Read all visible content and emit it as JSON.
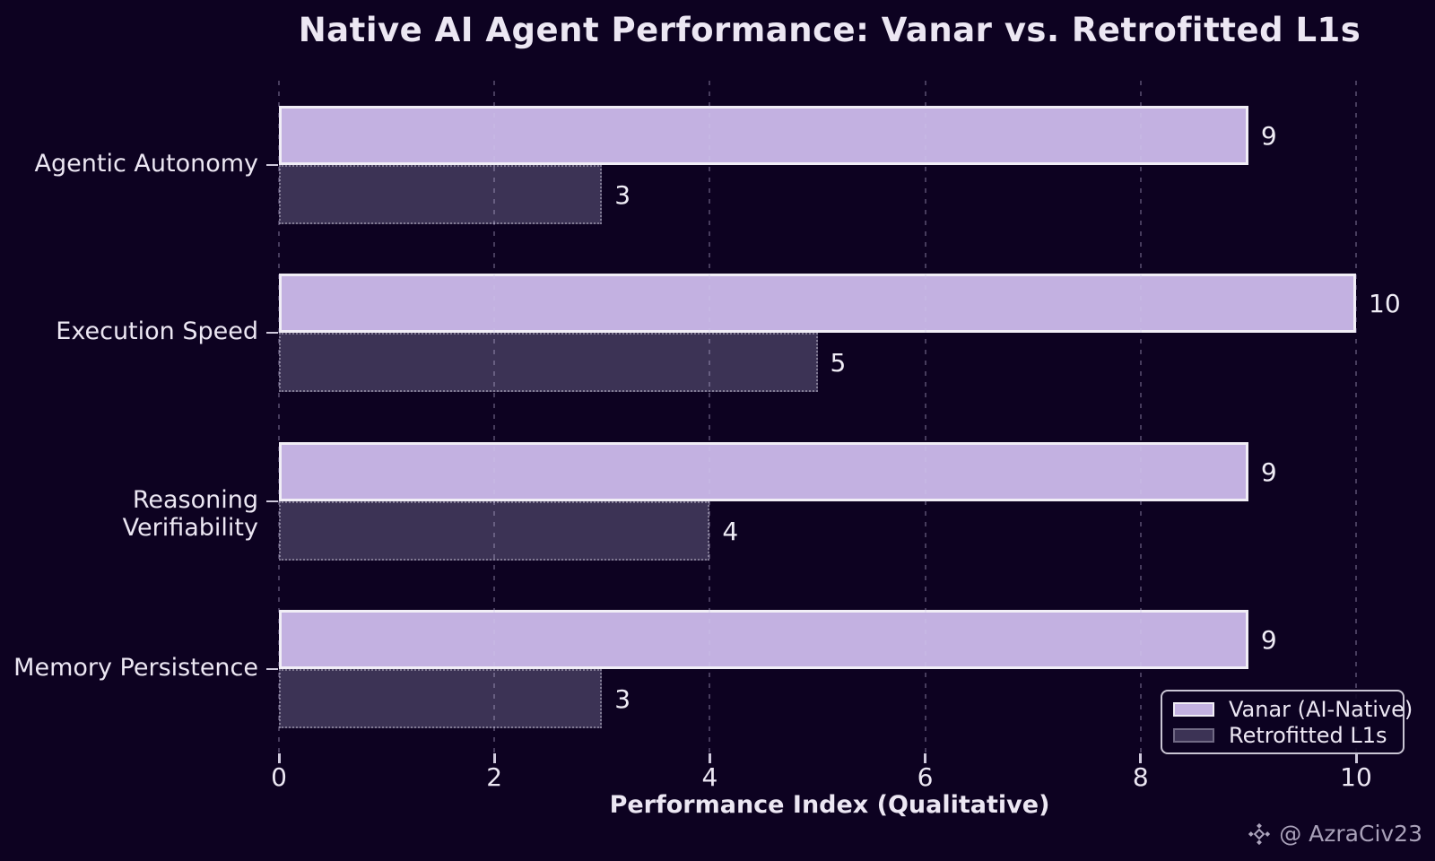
{
  "title": "Native AI Agent Performance: Vanar vs. Retrofitted L1s",
  "watermark": {
    "handle": "@ AzraCiv23",
    "icon": "diamond-cluster-logo"
  },
  "colors": {
    "background": "#0d0221",
    "text": "#ece7f3",
    "grid": "rgba(205,196,232,0.30)",
    "vanar_bar": "#c3b1e1",
    "retrofitted_bar": "#3c3355",
    "bar_edge": "#f1eef6",
    "legend_border": "#c9c5d4",
    "watermark_text": "#a9a1b9"
  },
  "chart_data": {
    "type": "bar",
    "orientation": "horizontal",
    "title": "Native AI Agent Performance: Vanar vs. Retrofitted L1s",
    "categories": [
      "Agentic Autonomy",
      "Execution Speed",
      "Reasoning Verifiability",
      "Memory Persistence"
    ],
    "series": [
      {
        "name": "Vanar (AI-Native)",
        "color": "#c3b1e1",
        "values": [
          9,
          10,
          9,
          9
        ]
      },
      {
        "name": "Retrofitted L1s",
        "color": "#3c3355",
        "values": [
          3,
          5,
          4,
          3
        ]
      }
    ],
    "xlabel": "Performance Index (Qualitative)",
    "ylabel": "",
    "xlim": [
      0,
      10.25
    ],
    "xticks": [
      0,
      2,
      4,
      6,
      8,
      10
    ],
    "grid": true,
    "grid_style": "dashed-vertical",
    "legend_position": "lower right",
    "value_labels_shown": true
  }
}
